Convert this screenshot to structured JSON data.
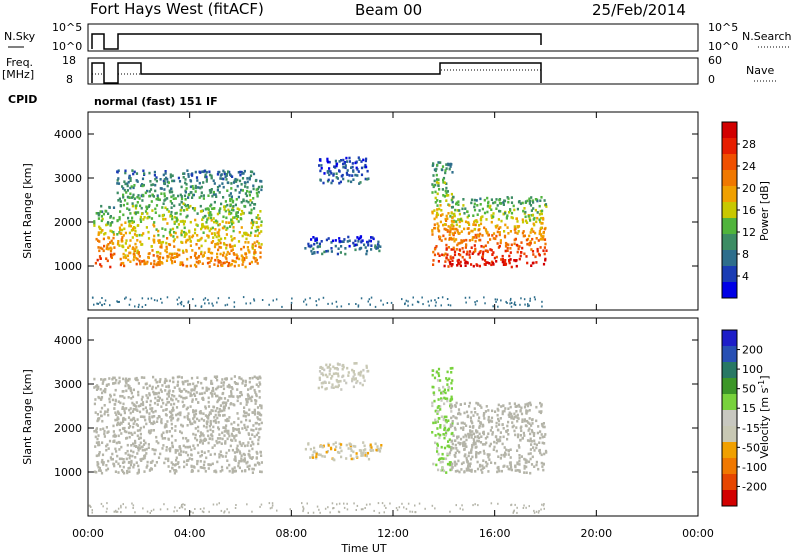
{
  "header": {
    "station": "Fort Hays West (fitACF)",
    "beam": "Beam 00",
    "date": "25/Feb/2014"
  },
  "strips": {
    "nsky_label": "N.Sky",
    "nsky_ticks": [
      "10^5",
      "10^0"
    ],
    "nsearch_label": "N.Search",
    "nsearch_ticks": [
      "10^5",
      "10^0"
    ],
    "freq_label_1": "Freq.",
    "freq_label_2": "[MHz]",
    "freq_ticks": [
      "18",
      "8"
    ],
    "nave_label": "Nave",
    "nave_ticks": [
      "60",
      "0"
    ],
    "cpid_label": "CPID",
    "cpid_text": "normal (fast) 151 IF"
  },
  "colors": {
    "power_scale": [
      "#0000e6",
      "#1a3cb4",
      "#2e6e8c",
      "#3c8c64",
      "#50b43c",
      "#c8c800",
      "#f0a000",
      "#f07800",
      "#f05000",
      "#e61e00",
      "#d20000"
    ],
    "velocity_scale": [
      "#1e1ec8",
      "#2850b4",
      "#287864",
      "#3c9628",
      "#78d23c",
      "#c8c8c0",
      "#c8c8b4",
      "#f0a000",
      "#f07800",
      "#e64600",
      "#d20000"
    ],
    "ground_scatter": "#b4b4a8"
  },
  "chart_data": [
    {
      "type": "heatmap",
      "panel": "power",
      "x_range": [
        "00:00",
        "24:00"
      ],
      "ylim": [
        0,
        4500
      ],
      "ylabel": "Slant Range [km]",
      "yticks": [
        "4000",
        "3000",
        "2000",
        "1000"
      ],
      "colorbar_label": "Power [dB]",
      "colorbar_ticks": [
        "28",
        "24",
        "20",
        "16",
        "12",
        "8",
        "4"
      ],
      "colorbar_range": [
        0,
        30
      ],
      "data_end_time": "18:00",
      "echo_regions": [
        {
          "t_start": 0.2,
          "t_end": 1.0,
          "range_min": 1000,
          "range_max": 2400,
          "power_dB": 20
        },
        {
          "t_start": 1.1,
          "t_end": 6.8,
          "range_min": 1000,
          "range_max": 3200,
          "power_dB": 16
        },
        {
          "t_start": 8.5,
          "t_end": 11.5,
          "range_min": 1300,
          "range_max": 1700,
          "power_dB": 6
        },
        {
          "t_start": 9.0,
          "t_end": 11.0,
          "range_min": 2900,
          "range_max": 3500,
          "power_dB": 6
        },
        {
          "t_start": 13.5,
          "t_end": 14.3,
          "range_min": 1000,
          "range_max": 3400,
          "power_dB": 20
        },
        {
          "t_start": 14.2,
          "t_end": 18.0,
          "range_min": 1000,
          "range_max": 2600,
          "power_dB": 22
        }
      ]
    },
    {
      "type": "heatmap",
      "panel": "velocity",
      "x_range": [
        "00:00",
        "24:00"
      ],
      "ylim": [
        0,
        4500
      ],
      "ylabel": "Slant Range [km]",
      "yticks": [
        "4000",
        "3000",
        "2000",
        "1000"
      ],
      "colorbar_label": "Velocity [m s^-1]",
      "colorbar_ticks": [
        "200",
        "100",
        "50",
        "15",
        "-15",
        "-50",
        "-100",
        "-200"
      ],
      "colorbar_range": [
        -250,
        250
      ],
      "xlabel": "Time UT",
      "xticks": [
        "00:00",
        "04:00",
        "08:00",
        "12:00",
        "16:00",
        "20:00",
        "00:00"
      ],
      "data_end_time": "18:00",
      "echo_regions": [
        {
          "t_start": 0.2,
          "t_end": 6.8,
          "range_min": 1000,
          "range_max": 3200,
          "velocity": 0,
          "class": "ground"
        },
        {
          "t_start": 8.5,
          "t_end": 11.5,
          "range_min": 1300,
          "range_max": 1700,
          "velocity": -60
        },
        {
          "t_start": 9.0,
          "t_end": 11.0,
          "range_min": 2900,
          "range_max": 3500,
          "velocity": -30
        },
        {
          "t_start": 13.5,
          "t_end": 14.3,
          "range_min": 1000,
          "range_max": 3400,
          "velocity": 30
        },
        {
          "t_start": 14.2,
          "t_end": 18.0,
          "range_min": 1000,
          "range_max": 2600,
          "velocity": 0,
          "class": "ground"
        }
      ]
    }
  ]
}
